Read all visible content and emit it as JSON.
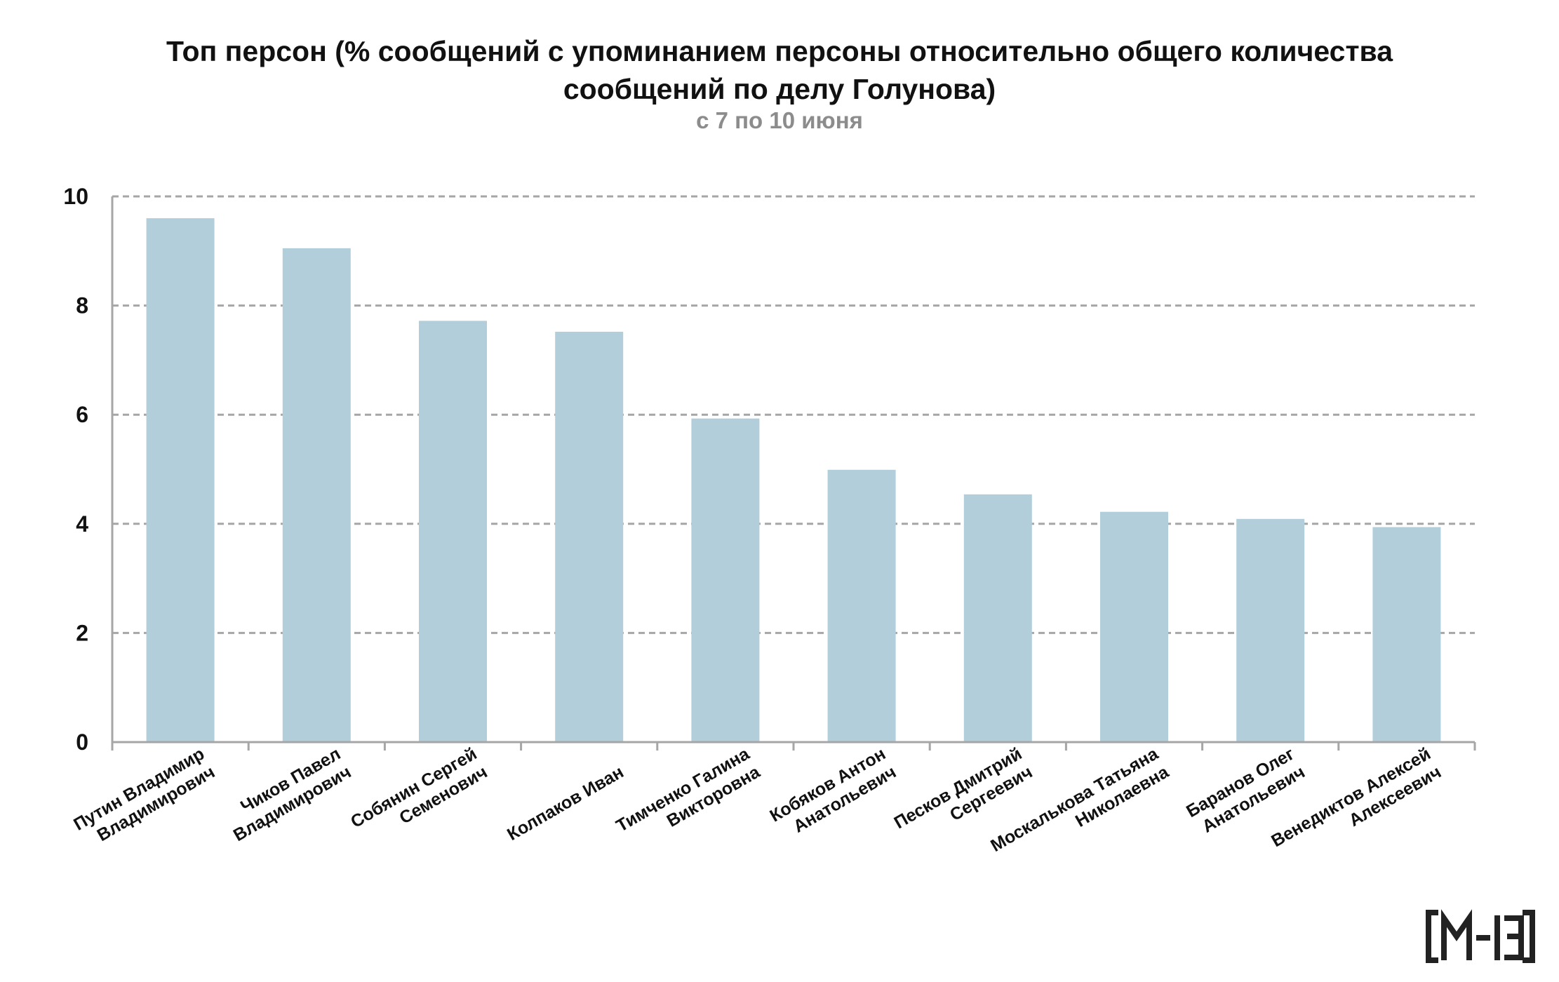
{
  "title_line1": "Топ персон (% сообщений с упоминанием персоны относительно общего количества",
  "title_line2": "сообщений по делу Голунова)",
  "subtitle": "с 7 по 10 июня",
  "logo_text": "M-13",
  "colors": {
    "bar": "#b3cedb",
    "grid": "#a6a6a6",
    "axis": "#a6a6a6",
    "text": "#111111",
    "subtitle": "#8c8c8c",
    "logo": "#222222"
  },
  "chart_data": {
    "type": "bar",
    "title": "Топ персон (% сообщений с упоминанием персоны относительно общего количества сообщений по делу Голунова)",
    "subtitle": "с 7 по 10 июня",
    "categories": [
      [
        "Путин Владимир",
        "Владимирович"
      ],
      [
        "Чиков Павел",
        "Владимирович"
      ],
      [
        "Собянин Сергей",
        "Семенович"
      ],
      [
        "Колпаков Иван"
      ],
      [
        "Тимченко Галина",
        "Викторовна"
      ],
      [
        "Кобяков Антон",
        "Анатольевич"
      ],
      [
        "Песков Дмитрий",
        "Сергеевич"
      ],
      [
        "Москалькова Татьяна",
        "Николаевна"
      ],
      [
        "Баранов Олег",
        "Анатольевич"
      ],
      [
        "Венедиктов Алексей",
        "Алексеевич"
      ]
    ],
    "values": [
      9.6,
      9.05,
      7.72,
      7.52,
      5.93,
      4.99,
      4.54,
      4.22,
      4.09,
      3.94
    ],
    "ylim": [
      0,
      10
    ],
    "yticks": [
      "0",
      "2",
      "4",
      "6",
      "8",
      "10"
    ],
    "xlabel": "",
    "ylabel": "",
    "grid": true
  }
}
